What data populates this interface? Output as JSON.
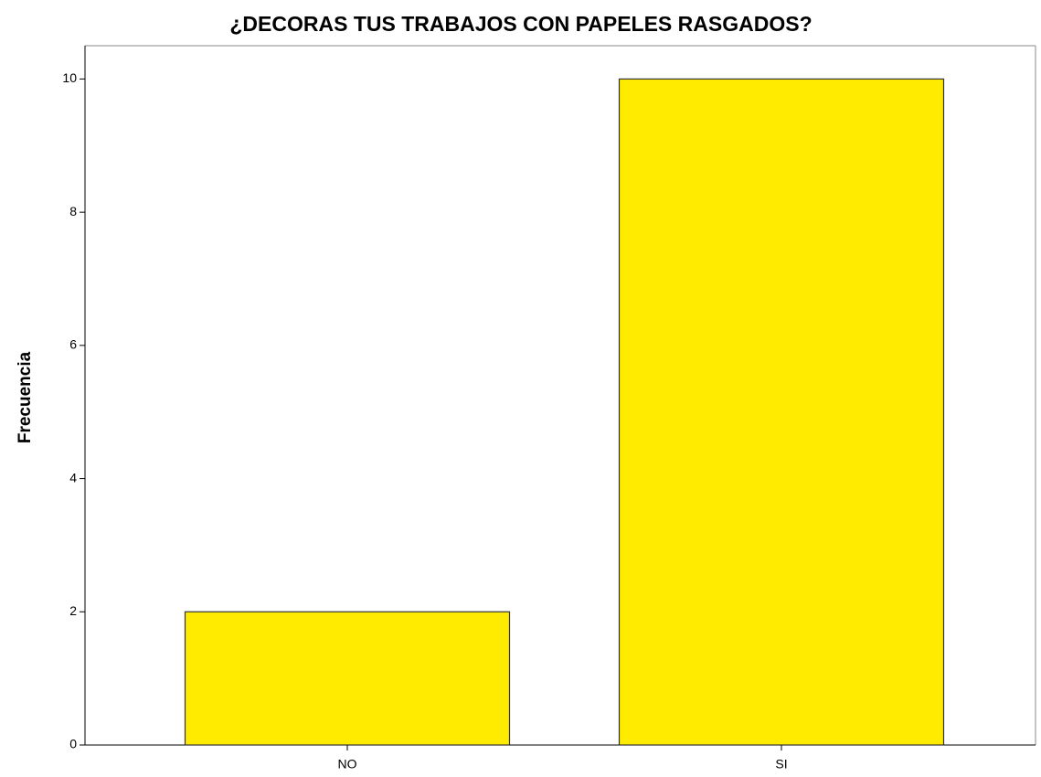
{
  "chart_data": {
    "type": "bar",
    "title": "¿DECORAS TUS TRABAJOS CON PAPELES RASGADOS?",
    "y_label": "Frecuencia",
    "categories": [
      "NO",
      "SI"
    ],
    "values": [
      2,
      10
    ],
    "color": "#ffeb00",
    "ylim": [
      0,
      10.5
    ],
    "yticks": [
      0,
      2,
      4,
      6,
      8,
      10
    ],
    "grid": false
  }
}
